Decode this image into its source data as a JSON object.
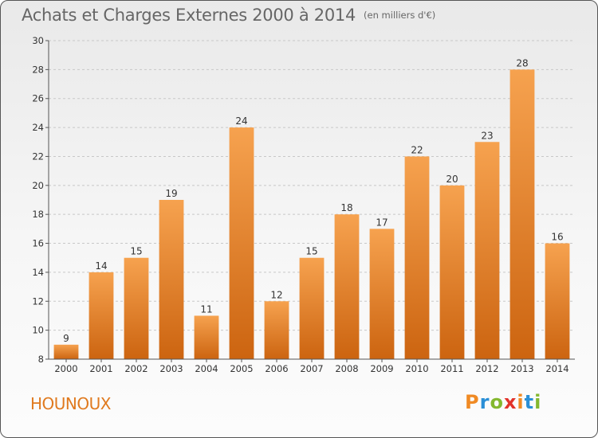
{
  "header": {
    "title": "Achats et Charges Externes 2000 à 2014",
    "unit": "(en milliers d'€)"
  },
  "footer": {
    "commune": "HOUNOUX",
    "brand": "Proxiti",
    "brand_colors": [
      "#f08a24",
      "#2a8fd6",
      "#84b82f",
      "#e2332b",
      "#f08a24",
      "#2a8fd6",
      "#84b82f"
    ]
  },
  "chart_data": {
    "type": "bar",
    "categories": [
      "2000",
      "2001",
      "2002",
      "2003",
      "2004",
      "2005",
      "2006",
      "2007",
      "2008",
      "2009",
      "2010",
      "2011",
      "2012",
      "2013",
      "2014"
    ],
    "values": [
      9,
      14,
      15,
      19,
      11,
      24,
      12,
      15,
      18,
      17,
      22,
      20,
      23,
      28,
      16
    ],
    "ylim": [
      8,
      30
    ],
    "yticks": [
      8,
      10,
      12,
      14,
      16,
      18,
      20,
      22,
      24,
      26,
      28,
      30
    ],
    "grid": true,
    "colors": {
      "bar_top": "#f6a24f",
      "bar_bottom": "#cc6410",
      "grid": "#c8c8c8"
    }
  }
}
